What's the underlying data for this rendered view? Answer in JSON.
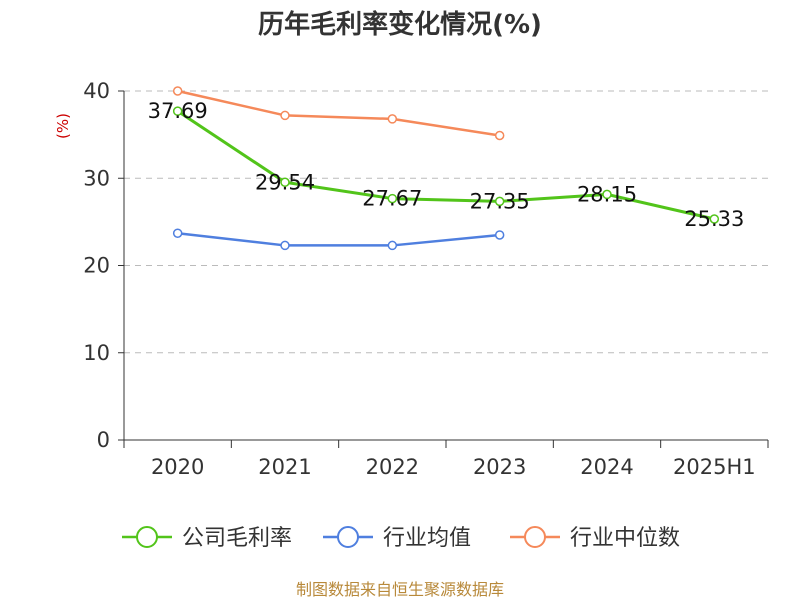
{
  "colors": {
    "company": "#52c41a",
    "industry_avg": "#4f7fdf",
    "industry_median": "#f5895a",
    "unit": "#cc0000",
    "source": "#b8893a",
    "grid": "#bbbbbb",
    "axis": "#333333"
  },
  "source_text": "制图数据来自恒生聚源数据库",
  "chart_data": {
    "type": "line",
    "title": "历年毛利率变化情况(%)",
    "ylabel": "(%)",
    "xlabel": "",
    "categories": [
      "2020",
      "2021",
      "2022",
      "2023",
      "2024",
      "2025H1"
    ],
    "ylim": [
      0,
      40
    ],
    "yticks": [
      0,
      10,
      20,
      30,
      40
    ],
    "grid": true,
    "legend_position": "bottom",
    "series": [
      {
        "key": "company",
        "name": "公司毛利率",
        "values": [
          37.69,
          29.54,
          27.67,
          27.35,
          28.15,
          25.33
        ],
        "labels": [
          "37.69",
          "29.54",
          "27.67",
          "27.35",
          "28.15",
          "25.33"
        ]
      },
      {
        "key": "industry_avg",
        "name": "行业均值",
        "values": [
          23.7,
          22.3,
          22.3,
          23.5,
          null,
          null
        ]
      },
      {
        "key": "industry_median",
        "name": "行业中位数",
        "values": [
          40.0,
          37.2,
          36.8,
          34.9,
          null,
          null
        ]
      }
    ]
  }
}
